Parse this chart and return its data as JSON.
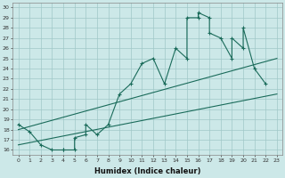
{
  "title": "",
  "xlabel": "Humidex (Indice chaleur)",
  "bg_color": "#cce8e8",
  "line_color": "#1a6b5a",
  "xlim": [
    -0.5,
    23.5
  ],
  "ylim": [
    15.5,
    30.5
  ],
  "xticks": [
    0,
    1,
    2,
    3,
    4,
    5,
    6,
    7,
    8,
    9,
    10,
    11,
    12,
    13,
    14,
    15,
    16,
    17,
    18,
    19,
    20,
    21,
    22,
    23
  ],
  "yticks": [
    16,
    17,
    18,
    19,
    20,
    21,
    22,
    23,
    24,
    25,
    26,
    27,
    28,
    29,
    30
  ],
  "curve1_x": [
    0,
    1,
    2,
    3,
    4,
    4,
    5,
    5,
    6,
    6,
    7,
    8,
    9,
    10,
    11,
    12,
    13,
    14,
    15,
    15,
    16,
    16,
    17,
    17,
    18,
    19,
    19,
    20,
    20,
    21,
    22
  ],
  "curve1_y": [
    18.5,
    17.8,
    16.5,
    16,
    16,
    16,
    16,
    17.2,
    17.5,
    18.5,
    17.5,
    18.5,
    21.5,
    22.5,
    24.5,
    25,
    22.5,
    26,
    25,
    29,
    29,
    29.5,
    29,
    27.5,
    27,
    25,
    27,
    26,
    28,
    24,
    22.5
  ],
  "line1_x": [
    0,
    23
  ],
  "line1_y": [
    16.5,
    21.5
  ],
  "line2_x": [
    0,
    23
  ],
  "line2_y": [
    18.0,
    25.0
  ],
  "grid_color": "#a0c8c8",
  "marker": "+"
}
